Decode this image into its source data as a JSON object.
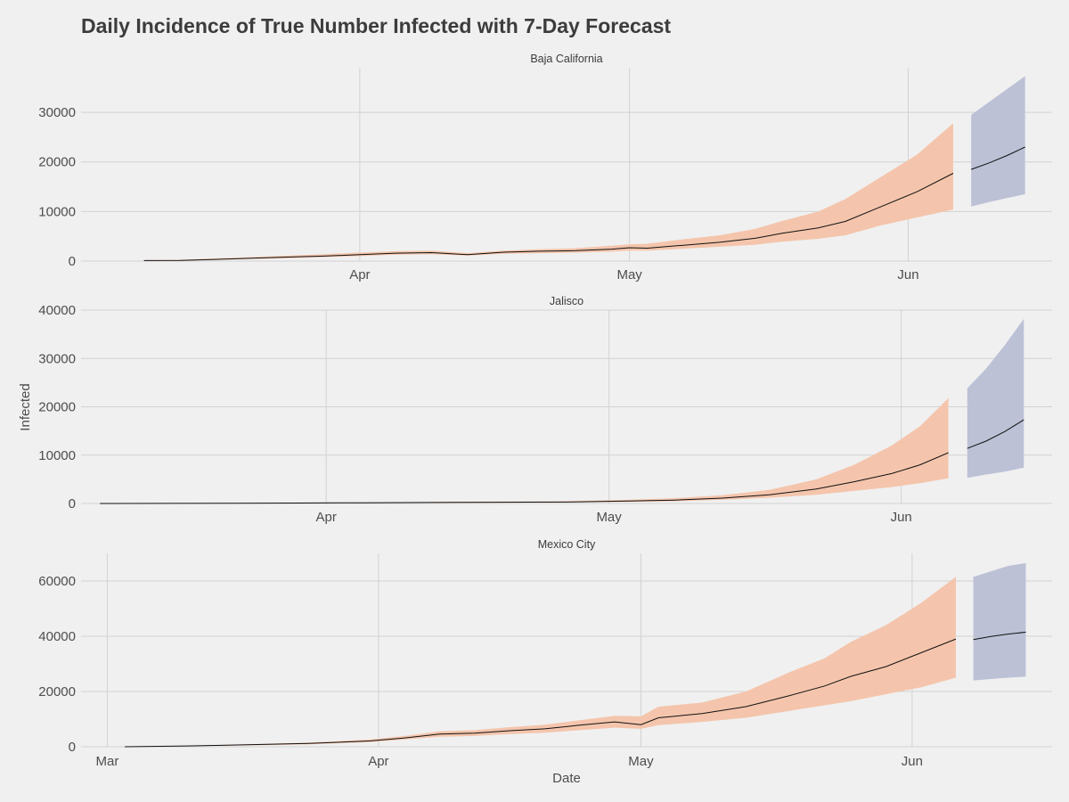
{
  "chart_data": {
    "type": "area",
    "title": "Daily Incidence of True Number Infected with 7-Day Forecast",
    "xlabel": "Date",
    "ylabel": "Infected",
    "colors": {
      "fitted_band": "#f4c5ac",
      "forecast_band": "#bcc1d6",
      "line": "#111111"
    },
    "legend": "none",
    "grid": true,
    "panels": [
      {
        "name": "Baja California",
        "ylim": [
          0,
          39000
        ],
        "yticks": [
          0,
          10000,
          20000,
          30000
        ],
        "xticks": [
          {
            "date": "2020-04-01",
            "label": "Apr"
          },
          {
            "date": "2020-05-01",
            "label": "May"
          },
          {
            "date": "2020-06-01",
            "label": "Jun"
          }
        ],
        "fitted": {
          "x": [
            "2020-03-08",
            "2020-03-12",
            "2020-03-16",
            "2020-03-20",
            "2020-03-24",
            "2020-03-28",
            "2020-04-01",
            "2020-04-05",
            "2020-04-09",
            "2020-04-13",
            "2020-04-17",
            "2020-04-21",
            "2020-04-25",
            "2020-04-29",
            "2020-05-01",
            "2020-05-03",
            "2020-05-07",
            "2020-05-11",
            "2020-05-15",
            "2020-05-18",
            "2020-05-22",
            "2020-05-25",
            "2020-05-29",
            "2020-06-02",
            "2020-06-06"
          ],
          "y": [
            100,
            150,
            350,
            600,
            800,
            1000,
            1300,
            1600,
            1700,
            1300,
            1800,
            2000,
            2100,
            2400,
            2700,
            2600,
            3200,
            3800,
            4600,
            5600,
            6700,
            8000,
            11000,
            14000,
            17700
          ],
          "lower": [
            50,
            100,
            250,
            450,
            600,
            800,
            1000,
            1300,
            1400,
            1100,
            1500,
            1600,
            1700,
            1900,
            2100,
            2100,
            2500,
            2900,
            3300,
            3900,
            4500,
            5200,
            7200,
            8800,
            10400
          ],
          "upper": [
            200,
            250,
            550,
            800,
            1100,
            1400,
            1700,
            2000,
            2100,
            1600,
            2100,
            2400,
            2600,
            3100,
            3400,
            3500,
            4400,
            5200,
            6500,
            8100,
            10000,
            12500,
            17000,
            21500,
            27800
          ]
        },
        "forecast": {
          "x": [
            "2020-06-08",
            "2020-06-10",
            "2020-06-12",
            "2020-06-14"
          ],
          "y": [
            18500,
            19800,
            21300,
            23000
          ],
          "lower": [
            11000,
            11900,
            12700,
            13500
          ],
          "upper": [
            29500,
            32100,
            34700,
            37300
          ]
        }
      },
      {
        "name": "Jalisco",
        "ylim": [
          0,
          40000
        ],
        "yticks": [
          0,
          10000,
          20000,
          30000,
          40000
        ],
        "xticks": [
          {
            "date": "2020-04-01",
            "label": "Apr"
          },
          {
            "date": "2020-05-01",
            "label": "May"
          },
          {
            "date": "2020-06-01",
            "label": "Jun"
          }
        ],
        "fitted": {
          "x": [
            "2020-03-08",
            "2020-03-15",
            "2020-03-22",
            "2020-03-29",
            "2020-04-05",
            "2020-04-12",
            "2020-04-19",
            "2020-04-26",
            "2020-05-03",
            "2020-05-08",
            "2020-05-13",
            "2020-05-18",
            "2020-05-23",
            "2020-05-27",
            "2020-05-31",
            "2020-06-03",
            "2020-06-06"
          ],
          "y": [
            0,
            20,
            50,
            100,
            150,
            200,
            250,
            300,
            500,
            700,
            1100,
            1800,
            3000,
            4500,
            6200,
            8000,
            10500
          ],
          "lower": [
            0,
            10,
            30,
            60,
            100,
            130,
            170,
            200,
            330,
            470,
            750,
            1200,
            1800,
            2600,
            3400,
            4200,
            5200
          ],
          "upper": [
            0,
            40,
            80,
            150,
            230,
            300,
            380,
            450,
            750,
            1100,
            1700,
            2800,
            5000,
            8000,
            12000,
            16000,
            21800
          ]
        },
        "forecast": {
          "x": [
            "2020-06-08",
            "2020-06-10",
            "2020-06-12",
            "2020-06-14"
          ],
          "y": [
            11400,
            12900,
            14900,
            17300
          ],
          "lower": [
            5300,
            6000,
            6600,
            7400
          ],
          "upper": [
            23800,
            27900,
            32800,
            38200
          ]
        }
      },
      {
        "name": "Mexico City",
        "ylim": [
          0,
          70000
        ],
        "yticks": [
          0,
          20000,
          40000,
          60000
        ],
        "xticks": [
          {
            "date": "2020-03-01",
            "label": "Mar"
          },
          {
            "date": "2020-04-01",
            "label": "Apr"
          },
          {
            "date": "2020-05-01",
            "label": "May"
          },
          {
            "date": "2020-06-01",
            "label": "Jun"
          }
        ],
        "fitted": {
          "x": [
            "2020-03-03",
            "2020-03-10",
            "2020-03-17",
            "2020-03-24",
            "2020-03-31",
            "2020-04-04",
            "2020-04-08",
            "2020-04-12",
            "2020-04-16",
            "2020-04-20",
            "2020-04-24",
            "2020-04-28",
            "2020-05-01",
            "2020-05-03",
            "2020-05-08",
            "2020-05-13",
            "2020-05-18",
            "2020-05-22",
            "2020-05-25",
            "2020-05-29",
            "2020-06-02",
            "2020-06-06"
          ],
          "y": [
            0,
            300,
            700,
            1200,
            2100,
            3200,
            4600,
            4900,
            5800,
            6500,
            7800,
            9000,
            8000,
            10500,
            12000,
            14500,
            18500,
            22000,
            25500,
            29000,
            34000,
            39000
          ],
          "lower": [
            0,
            200,
            500,
            900,
            1700,
            2600,
            3600,
            3900,
            4600,
            5100,
            6000,
            6900,
            6500,
            7800,
            9000,
            10500,
            13000,
            15000,
            16500,
            19000,
            21500,
            25000
          ],
          "upper": [
            0,
            400,
            900,
            1500,
            2600,
            3900,
            5600,
            6000,
            7100,
            8000,
            9600,
            11200,
            11000,
            14500,
            16000,
            20000,
            27000,
            32000,
            38000,
            44000,
            52000,
            61500
          ]
        },
        "forecast": {
          "x": [
            "2020-06-08",
            "2020-06-10",
            "2020-06-12",
            "2020-06-14"
          ],
          "y": [
            38800,
            39900,
            40800,
            41500
          ],
          "lower": [
            24000,
            24500,
            25000,
            25400
          ],
          "upper": [
            61500,
            63500,
            65500,
            66500
          ]
        }
      }
    ]
  }
}
